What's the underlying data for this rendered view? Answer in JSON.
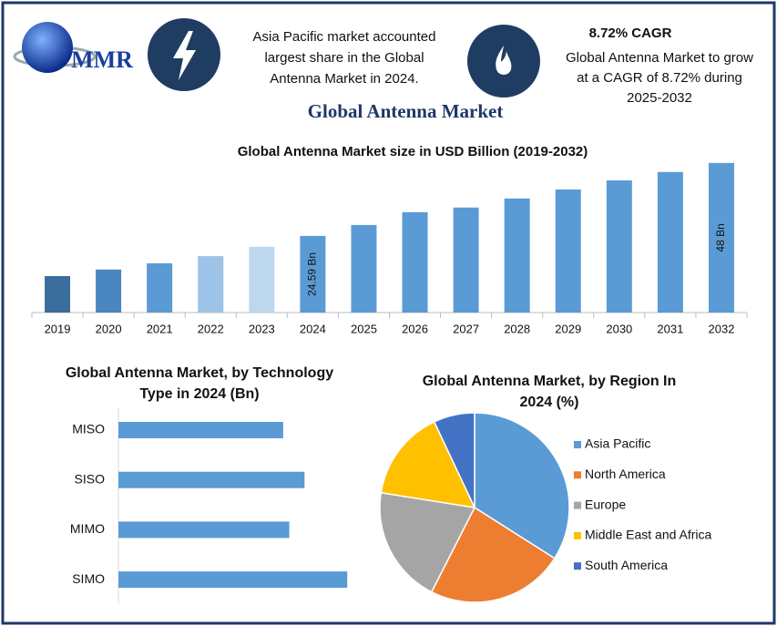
{
  "header": {
    "logo_text": "MMR",
    "share_note": [
      "Asia Pacific market accounted",
      "largest share in the Global",
      "Antenna Market in 2024."
    ],
    "cagr_title": "8.72% CAGR",
    "cagr_note": [
      "Global Antenna Market to grow",
      "at a CAGR of 8.72% during",
      "2025-2032"
    ],
    "main_title": "Global Antenna Market"
  },
  "chart_data": [
    {
      "type": "bar",
      "title": "Global Antenna Market size in USD Billion (2019-2032)",
      "categories": [
        "2019",
        "2020",
        "2021",
        "2022",
        "2023",
        "2024",
        "2025",
        "2026",
        "2027",
        "2028",
        "2029",
        "2030",
        "2031",
        "2032"
      ],
      "values": [
        11.7,
        13.8,
        15.8,
        18.1,
        21.1,
        24.59,
        28.1,
        32.2,
        33.7,
        36.6,
        39.5,
        42.4,
        45.1,
        48
      ],
      "value_labels": [
        null,
        null,
        null,
        null,
        null,
        "24.59 Bn",
        null,
        null,
        null,
        null,
        null,
        null,
        null,
        "48 Bn"
      ],
      "colors": [
        "#3b6d9c",
        "#4a86bf",
        "#5b9bd5",
        "#9dc3e6",
        "#bdd7ee",
        "#5b9bd5",
        "#5b9bd5",
        "#5b9bd5",
        "#5b9bd5",
        "#5b9bd5",
        "#5b9bd5",
        "#5b9bd5",
        "#5b9bd5",
        "#5b9bd5"
      ],
      "ylim": [
        0,
        50
      ]
    },
    {
      "type": "hbar",
      "title": [
        "Global Antenna Market, by Technology",
        "Type in 2024 (Bn)"
      ],
      "categories": [
        "MISO",
        "SISO",
        "MIMO",
        "SIMO"
      ],
      "values": [
        5.4,
        6.1,
        5.6,
        7.5
      ],
      "color": "#5b9bd5",
      "xlim": [
        0,
        10
      ]
    },
    {
      "type": "pie",
      "title": [
        "Global Antenna Market, by Region In",
        "2024 (%)"
      ],
      "categories": [
        "Asia Pacific",
        "North America",
        "Europe",
        "Middle East and Africa",
        "South America"
      ],
      "values": [
        34,
        23.5,
        20,
        15.5,
        7
      ],
      "colors": [
        "#5b9bd5",
        "#ed7d31",
        "#a5a5a5",
        "#ffc000",
        "#4472c4"
      ],
      "legend": "right"
    }
  ]
}
